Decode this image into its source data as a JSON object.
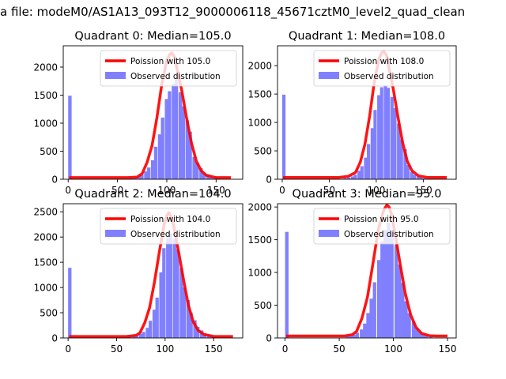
{
  "figure": {
    "suptitle": "a file: modeM0/AS1A13_093T12_9000006118_45671cztM0_level2_quad_clean"
  },
  "chart_data": [
    {
      "type": "bar",
      "title": "Quadrant 0: Median=105.0",
      "xlim": [
        -5,
        177
      ],
      "ylim": [
        0,
        2380
      ],
      "xticks": [
        0,
        50,
        100,
        150
      ],
      "yticks": [
        0,
        500,
        1000,
        1500,
        2000
      ],
      "legend": {
        "position": "top-right",
        "line_label": "Poission with 105.0",
        "bar_label": "Observed distribution"
      },
      "bar_width": 3.5,
      "bars": [
        [
          0,
          1490
        ],
        [
          62,
          20
        ],
        [
          66,
          30
        ],
        [
          70,
          50
        ],
        [
          73,
          80
        ],
        [
          77,
          140
        ],
        [
          80,
          210
        ],
        [
          84,
          340
        ],
        [
          87,
          580
        ],
        [
          91,
          800
        ],
        [
          94,
          1100
        ],
        [
          98,
          1430
        ],
        [
          101,
          1570
        ],
        [
          105,
          1700
        ],
        [
          108,
          1790
        ],
        [
          112,
          1550
        ],
        [
          115,
          1300
        ],
        [
          119,
          1050
        ],
        [
          122,
          850
        ],
        [
          126,
          400
        ],
        [
          129,
          300
        ],
        [
          133,
          200
        ],
        [
          136,
          110
        ],
        [
          140,
          80
        ],
        [
          143,
          50
        ],
        [
          147,
          30
        ],
        [
          150,
          20
        ]
      ],
      "series": [
        {
          "name": "Poission with 105.0",
          "x": [
            1,
            60,
            70,
            75,
            80,
            85,
            90,
            95,
            100,
            103,
            105,
            108,
            110,
            115,
            120,
            125,
            130,
            135,
            140,
            150,
            165
          ],
          "y": [
            30,
            30,
            40,
            100,
            300,
            600,
            1100,
            1700,
            2120,
            2230,
            2250,
            2180,
            2000,
            1600,
            1100,
            650,
            320,
            150,
            70,
            30,
            30
          ]
        }
      ]
    },
    {
      "type": "bar",
      "title": "Quadrant 1: Median=108.0",
      "xlim": [
        -5,
        185
      ],
      "ylim": [
        0,
        2350
      ],
      "xticks": [
        0,
        50,
        100,
        150
      ],
      "yticks": [
        0,
        500,
        1000,
        1500,
        2000
      ],
      "legend": {
        "position": "top-right",
        "line_label": "Poission with 108.0",
        "bar_label": "Observed distribution"
      },
      "bar_width": 3.5,
      "bars": [
        [
          0,
          1490
        ],
        [
          65,
          20
        ],
        [
          69,
          30
        ],
        [
          73,
          50
        ],
        [
          76,
          80
        ],
        [
          80,
          150
        ],
        [
          83,
          230
        ],
        [
          87,
          380
        ],
        [
          90,
          620
        ],
        [
          94,
          900
        ],
        [
          97,
          1220
        ],
        [
          101,
          1480
        ],
        [
          104,
          1620
        ],
        [
          108,
          1650
        ],
        [
          111,
          1610
        ],
        [
          115,
          1450
        ],
        [
          118,
          1250
        ],
        [
          122,
          980
        ],
        [
          125,
          700
        ],
        [
          129,
          530
        ],
        [
          132,
          250
        ],
        [
          136,
          130
        ],
        [
          139,
          80
        ],
        [
          143,
          50
        ],
        [
          146,
          30
        ],
        [
          150,
          20
        ]
      ],
      "series": [
        {
          "name": "Poission with 108.0",
          "x": [
            1,
            60,
            70,
            78,
            83,
            88,
            93,
            98,
            103,
            106,
            108,
            111,
            113,
            118,
            123,
            128,
            133,
            138,
            145,
            155,
            175
          ],
          "y": [
            30,
            30,
            50,
            120,
            300,
            620,
            1120,
            1720,
            2130,
            2230,
            2250,
            2180,
            2000,
            1600,
            1100,
            650,
            320,
            150,
            60,
            30,
            30
          ]
        }
      ]
    },
    {
      "type": "bar",
      "title": "Quadrant 2: Median=104.0",
      "xlim": [
        -5,
        180
      ],
      "ylim": [
        0,
        2660
      ],
      "xticks": [
        0,
        50,
        100,
        150
      ],
      "yticks": [
        0,
        500,
        1000,
        1500,
        2000,
        2500
      ],
      "legend": {
        "position": "top-right",
        "line_label": "Poission with 104.0",
        "bar_label": "Observed distribution"
      },
      "bar_width": 3.5,
      "bars": [
        [
          0,
          1390
        ],
        [
          62,
          20
        ],
        [
          66,
          30
        ],
        [
          69,
          50
        ],
        [
          73,
          80
        ],
        [
          76,
          120
        ],
        [
          80,
          200
        ],
        [
          83,
          340
        ],
        [
          87,
          560
        ],
        [
          90,
          800
        ],
        [
          94,
          1300
        ],
        [
          97,
          1780
        ],
        [
          101,
          1980
        ],
        [
          104,
          2080
        ],
        [
          108,
          1960
        ],
        [
          111,
          1750
        ],
        [
          115,
          1380
        ],
        [
          118,
          1000
        ],
        [
          122,
          750
        ],
        [
          125,
          500
        ],
        [
          129,
          350
        ],
        [
          132,
          220
        ],
        [
          136,
          150
        ],
        [
          139,
          90
        ],
        [
          143,
          60
        ],
        [
          146,
          40
        ],
        [
          150,
          20
        ]
      ],
      "series": [
        {
          "name": "Poission with 104.0",
          "x": [
            1,
            60,
            70,
            74,
            79,
            84,
            89,
            94,
            99,
            102,
            104,
            107,
            109,
            114,
            119,
            124,
            129,
            134,
            140,
            150,
            170
          ],
          "y": [
            30,
            30,
            50,
            100,
            300,
            600,
            1100,
            1700,
            2250,
            2430,
            2480,
            2380,
            2200,
            1700,
            1150,
            650,
            320,
            150,
            70,
            30,
            30
          ]
        }
      ]
    },
    {
      "type": "bar",
      "title": "Quadrant 3: Median=95.0",
      "xlim": [
        -7,
        158
      ],
      "ylim": [
        0,
        2050
      ],
      "xticks": [
        0,
        50,
        100,
        150
      ],
      "yticks": [
        0,
        500,
        1000,
        1500,
        2000
      ],
      "legend": {
        "position": "top-right",
        "line_label": "Poission with 95.0",
        "bar_label": "Observed distribution"
      },
      "bar_width": 3.2,
      "bars": [
        [
          0,
          1620
        ],
        [
          56,
          20
        ],
        [
          59,
          30
        ],
        [
          62,
          50
        ],
        [
          65,
          80
        ],
        [
          69,
          130
        ],
        [
          72,
          220
        ],
        [
          75,
          380
        ],
        [
          78,
          600
        ],
        [
          81,
          850
        ],
        [
          85,
          1190
        ],
        [
          88,
          1470
        ],
        [
          91,
          1650
        ],
        [
          94,
          1760
        ],
        [
          97,
          1640
        ],
        [
          101,
          1420
        ],
        [
          104,
          1120
        ],
        [
          107,
          840
        ],
        [
          110,
          560
        ],
        [
          113,
          380
        ],
        [
          117,
          250
        ],
        [
          120,
          150
        ],
        [
          123,
          90
        ],
        [
          126,
          60
        ],
        [
          129,
          40
        ],
        [
          133,
          20
        ]
      ],
      "series": [
        {
          "name": "Poission with 95.0",
          "x": [
            1,
            55,
            62,
            66,
            71,
            76,
            81,
            86,
            91,
            94,
            96,
            98,
            101,
            106,
            111,
            116,
            121,
            126,
            133,
            140,
            150
          ],
          "y": [
            30,
            30,
            50,
            100,
            300,
            620,
            1120,
            1650,
            1950,
            2030,
            2000,
            1900,
            1650,
            1150,
            680,
            350,
            160,
            70,
            35,
            30,
            30
          ]
        }
      ]
    }
  ],
  "colors": {
    "bars": "#8080ff",
    "line": "#ff0000",
    "axis": "#000000"
  }
}
